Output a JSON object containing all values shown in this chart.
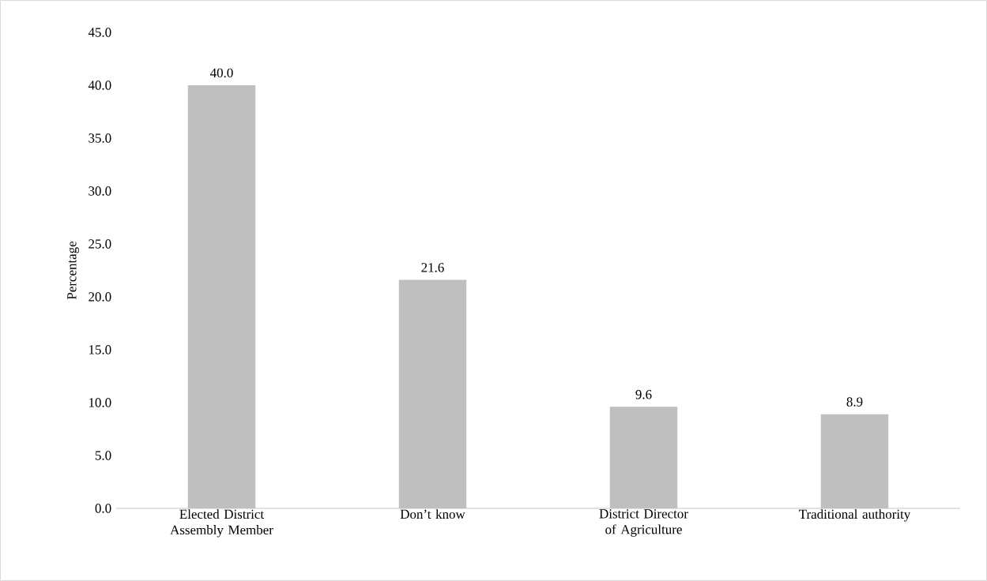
{
  "chart_data": {
    "type": "bar",
    "ylabel": "Percentage",
    "categories": [
      "Elected District Assembly Member",
      "Don’t know",
      "District Director of Agriculture",
      "Traditional authority"
    ],
    "values": [
      40.0,
      21.6,
      9.6,
      8.9
    ],
    "value_labels": [
      "40.0",
      "21.6",
      "9.6",
      "8.9"
    ],
    "color": "#bfbfbf",
    "ylim": [
      0,
      45
    ],
    "yticks": [
      {
        "value": 0,
        "label": "0.0"
      },
      {
        "value": 5,
        "label": "5.0"
      },
      {
        "value": 10,
        "label": "10.0"
      },
      {
        "value": 15,
        "label": "15.0"
      },
      {
        "value": 20,
        "label": "20.0"
      },
      {
        "value": 25,
        "label": "25.0"
      },
      {
        "value": 30,
        "label": "30.0"
      },
      {
        "value": 35,
        "label": "35.0"
      },
      {
        "value": 40,
        "label": "40.0"
      },
      {
        "value": 45,
        "label": "45.0"
      }
    ],
    "grid": false
  }
}
